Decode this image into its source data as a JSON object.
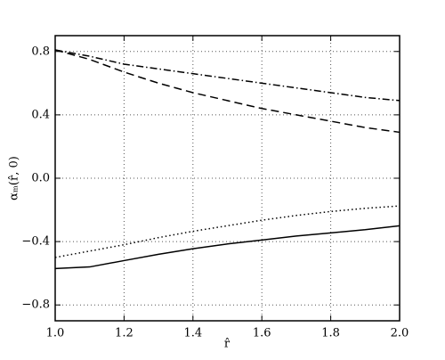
{
  "chart_data": {
    "type": "line",
    "x": [
      1.0,
      1.1,
      1.2,
      1.3,
      1.4,
      1.5,
      1.6,
      1.7,
      1.8,
      1.9,
      2.0
    ],
    "series": [
      {
        "color": "#000000",
        "dash": "solid",
        "values": [
          -0.57,
          -0.56,
          -0.52,
          -0.48,
          -0.445,
          -0.415,
          -0.39,
          -0.365,
          -0.345,
          -0.325,
          -0.3
        ]
      },
      {
        "color": "#000000",
        "dash": "dotted",
        "values": [
          -0.5,
          -0.46,
          -0.42,
          -0.375,
          -0.335,
          -0.3,
          -0.265,
          -0.235,
          -0.21,
          -0.19,
          -0.175
        ]
      },
      {
        "color": "#000000",
        "dash": "dashed",
        "values": [
          0.81,
          0.75,
          0.67,
          0.6,
          0.54,
          0.49,
          0.44,
          0.4,
          0.36,
          0.32,
          0.29
        ]
      },
      {
        "color": "#000000",
        "dash": "dashdot",
        "values": [
          0.81,
          0.77,
          0.72,
          0.69,
          0.66,
          0.63,
          0.6,
          0.57,
          0.54,
          0.51,
          0.49
        ]
      }
    ],
    "xlabel": "r̂",
    "ylabel": "αₘ(r̂, 0)",
    "xlim": [
      1.0,
      2.0
    ],
    "ylim": [
      -0.9,
      0.9
    ],
    "xticks": [
      {
        "value": 1,
        "label": "1.0"
      },
      1.2,
      1.4,
      1.6,
      1.8,
      {
        "value": 2,
        "label": "2.0"
      }
    ],
    "yticks": [
      {
        "value": -0.8,
        "label": "−0.8"
      },
      {
        "value": -0.4,
        "label": "−0.4"
      },
      {
        "value": 0,
        "label": "0.0"
      },
      0.4,
      0.8
    ],
    "grid": true
  }
}
